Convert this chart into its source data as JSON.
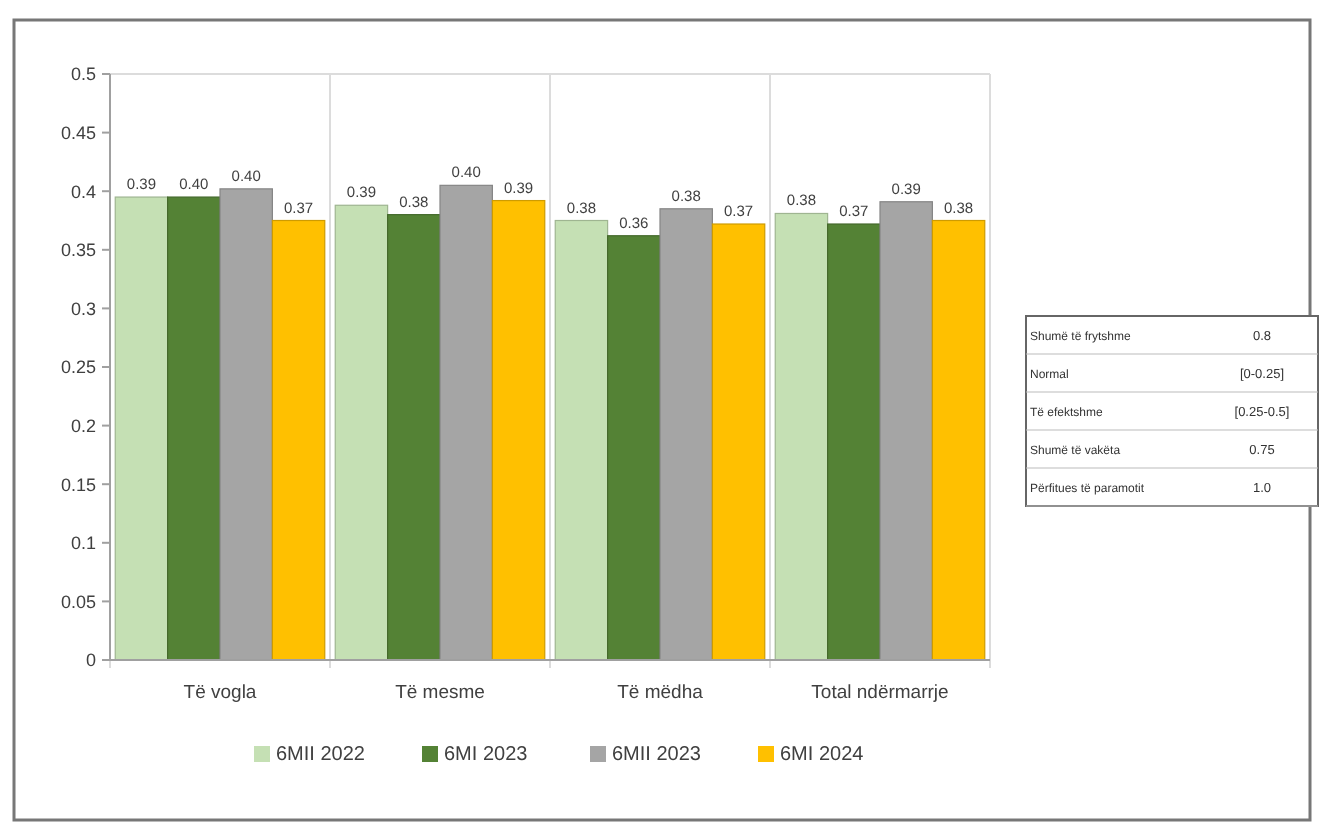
{
  "chart_data": {
    "type": "bar",
    "categories": [
      "Të vogla",
      "Të mesme",
      "Të mëdha",
      "Total ndërmarrje"
    ],
    "series": [
      {
        "name": "6MII 2022",
        "color": "#c5e0b4",
        "values": [
          0.395,
          0.388,
          0.375,
          0.381
        ],
        "value_labels": [
          "0.39",
          "0.39",
          "0.38",
          "0.38"
        ]
      },
      {
        "name": "6MI 2023",
        "color": "#548235",
        "values": [
          0.395,
          0.38,
          0.362,
          0.372
        ],
        "value_labels": [
          "0.40",
          "0.38",
          "0.36",
          "0.37"
        ]
      },
      {
        "name": "6MII 2023",
        "color": "#a5a5a5",
        "values": [
          0.402,
          0.405,
          0.385,
          0.391
        ],
        "value_labels": [
          "0.40",
          "0.40",
          "0.38",
          "0.39"
        ]
      },
      {
        "name": "6MI 2024",
        "color": "#ffc000",
        "values": [
          0.375,
          0.392,
          0.372,
          0.375
        ],
        "value_labels": [
          "0.37",
          "0.39",
          "0.37",
          "0.38"
        ]
      }
    ],
    "ylim": [
      0,
      0.5
    ],
    "yticks": [
      0,
      0.05,
      0.1,
      0.15,
      0.2,
      0.25,
      0.3,
      0.35,
      0.4,
      0.45,
      0.5
    ],
    "grid": "x",
    "legend": "bottom",
    "annotations": [
      "Shumë të frytshme",
      "0.8",
      "Normal",
      "[0-0.25]",
      "Të efektshme",
      "[0.25-0.5]",
      "Shumë të vakëta",
      "0.75",
      "Përfitues të paramotit",
      "1.0"
    ]
  }
}
